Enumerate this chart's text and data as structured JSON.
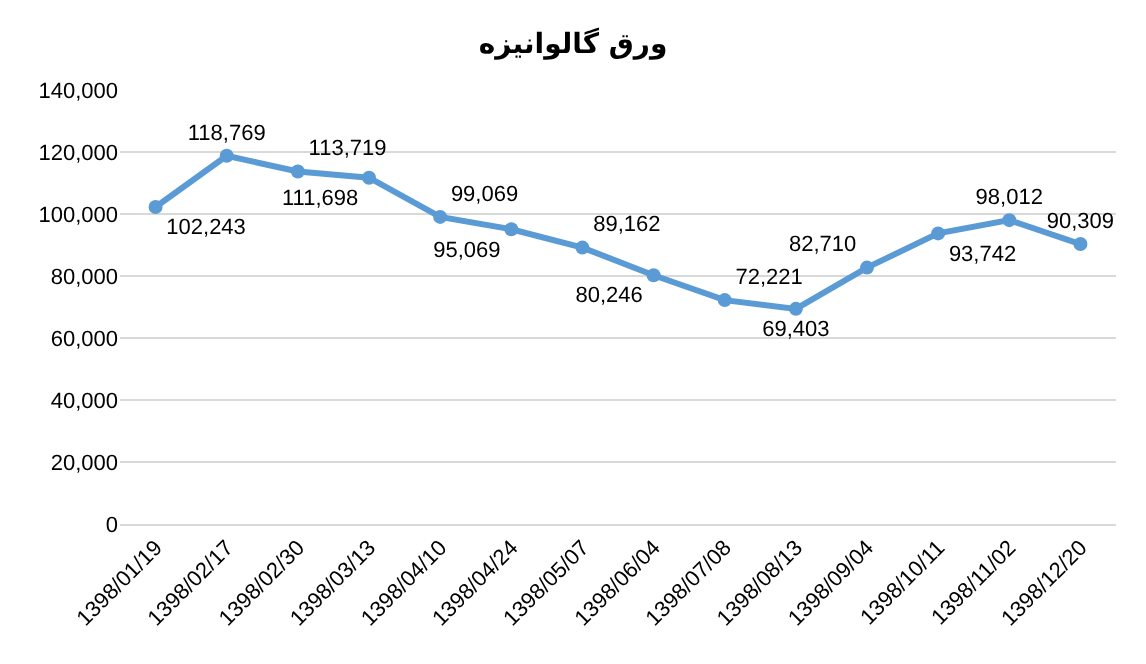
{
  "chart_data": {
    "type": "line",
    "title": "ورق گالوانیزه",
    "categories": [
      "1398/01/19",
      "1398/02/17",
      "1398/02/30",
      "1398/03/13",
      "1398/04/10",
      "1398/04/24",
      "1398/05/07",
      "1398/06/04",
      "1398/07/08",
      "1398/08/13",
      "1398/09/04",
      "1398/10/11",
      "1398/11/02",
      "1398/12/20"
    ],
    "series": [
      {
        "color": "#5b9bd5",
        "values": [
          102243,
          118769,
          113719,
          111698,
          99069,
          95069,
          89162,
          80246,
          72221,
          69403,
          82710,
          93742,
          98012,
          90309
        ],
        "value_labels": [
          "102,243",
          "118,769",
          "113,719",
          "111,698",
          "99,069",
          "95,069",
          "89,162",
          "80,246",
          "72,221",
          "69,403",
          "82,710",
          "93,742",
          "98,012",
          "90,309"
        ]
      }
    ],
    "ylim": [
      0,
      140000
    ],
    "yticks": [
      {
        "value": 0,
        "label": "0"
      },
      {
        "value": 20000,
        "label": "20,000"
      },
      {
        "value": 40000,
        "label": "40,000"
      },
      {
        "value": 60000,
        "label": "60,000"
      },
      {
        "value": 80000,
        "label": "80,000"
      },
      {
        "value": 100000,
        "label": "100,000"
      },
      {
        "value": 120000,
        "label": "120,000"
      },
      {
        "value": 140000,
        "label": "140,000"
      }
    ],
    "grid": "y",
    "marker": "circle",
    "line_style": "solid",
    "legend": false
  }
}
